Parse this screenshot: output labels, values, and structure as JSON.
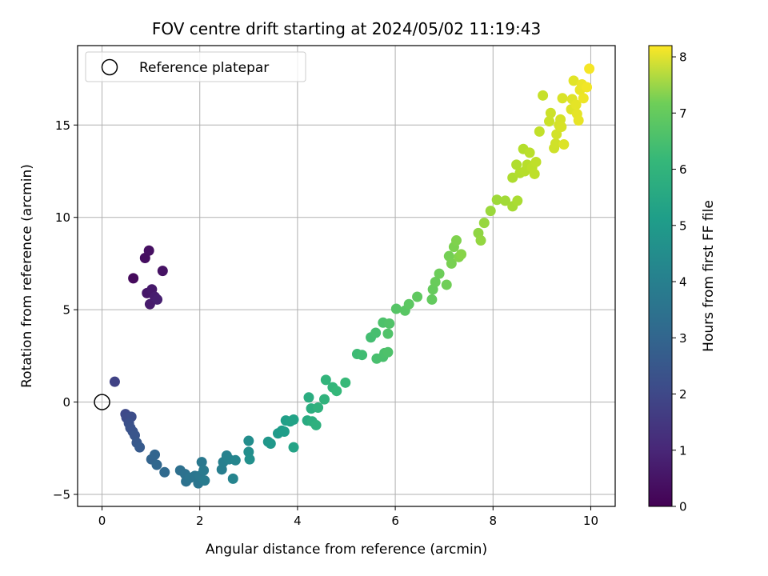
{
  "chart_data": {
    "type": "scatter",
    "title": "FOV centre drift starting at 2024/05/02 11:19:43",
    "xlabel": "Angular distance from reference (arcmin)",
    "ylabel": "Rotation from reference (arcmin)",
    "xlim": [
      -0.5,
      10.5
    ],
    "ylim": [
      -5.65,
      19.3
    ],
    "x_ticks": [
      0,
      2,
      4,
      6,
      8,
      10
    ],
    "y_ticks": [
      -5,
      0,
      5,
      10,
      15
    ],
    "grid": true,
    "legend": {
      "placement": "top-left",
      "entries": [
        "Reference platepar"
      ]
    },
    "reference_point": {
      "x": 0.0,
      "y": 0.0,
      "label": "Reference platepar"
    },
    "colorbar": {
      "label": "Hours from first FF file",
      "colormap": "viridis",
      "range": [
        0,
        8.2
      ],
      "ticks": [
        0,
        1,
        2,
        3,
        4,
        5,
        6,
        7,
        8
      ]
    },
    "points": [
      {
        "x": 0.64,
        "y": 6.7,
        "c": 0.2
      },
      {
        "x": 0.88,
        "y": 7.8,
        "c": 0.3
      },
      {
        "x": 0.96,
        "y": 8.2,
        "c": 0.35
      },
      {
        "x": 1.24,
        "y": 7.1,
        "c": 0.4
      },
      {
        "x": 0.92,
        "y": 5.9,
        "c": 0.5
      },
      {
        "x": 1.02,
        "y": 6.1,
        "c": 0.55
      },
      {
        "x": 0.98,
        "y": 5.3,
        "c": 0.6
      },
      {
        "x": 1.08,
        "y": 5.7,
        "c": 0.65
      },
      {
        "x": 1.13,
        "y": 5.55,
        "c": 0.7
      },
      {
        "x": 0.26,
        "y": 1.1,
        "c": 1.6
      },
      {
        "x": 0.48,
        "y": -0.65,
        "c": 1.8
      },
      {
        "x": 0.5,
        "y": -0.85,
        "c": 1.85
      },
      {
        "x": 0.6,
        "y": -0.8,
        "c": 1.9
      },
      {
        "x": 0.55,
        "y": -1.15,
        "c": 2.0
      },
      {
        "x": 0.58,
        "y": -1.4,
        "c": 2.05
      },
      {
        "x": 0.63,
        "y": -1.6,
        "c": 2.1
      },
      {
        "x": 0.67,
        "y": -1.8,
        "c": 2.15
      },
      {
        "x": 0.71,
        "y": -2.2,
        "c": 2.25
      },
      {
        "x": 0.77,
        "y": -2.45,
        "c": 2.3
      },
      {
        "x": 1.01,
        "y": -3.1,
        "c": 2.6
      },
      {
        "x": 1.08,
        "y": -2.85,
        "c": 2.65
      },
      {
        "x": 1.12,
        "y": -3.4,
        "c": 2.7
      },
      {
        "x": 1.28,
        "y": -3.8,
        "c": 2.8
      },
      {
        "x": 1.6,
        "y": -3.7,
        "c": 3.0
      },
      {
        "x": 1.7,
        "y": -3.9,
        "c": 3.05
      },
      {
        "x": 1.72,
        "y": -4.3,
        "c": 3.1
      },
      {
        "x": 1.8,
        "y": -4.1,
        "c": 3.15
      },
      {
        "x": 1.9,
        "y": -4.0,
        "c": 3.2
      },
      {
        "x": 1.97,
        "y": -4.4,
        "c": 3.2
      },
      {
        "x": 2.0,
        "y": -4.0,
        "c": 3.25
      },
      {
        "x": 2.04,
        "y": -3.25,
        "c": 3.3
      },
      {
        "x": 2.08,
        "y": -3.7,
        "c": 3.35
      },
      {
        "x": 2.1,
        "y": -4.25,
        "c": 3.4
      },
      {
        "x": 2.45,
        "y": -3.65,
        "c": 3.5
      },
      {
        "x": 2.48,
        "y": -3.25,
        "c": 3.55
      },
      {
        "x": 2.55,
        "y": -2.9,
        "c": 3.6
      },
      {
        "x": 2.6,
        "y": -3.1,
        "c": 3.65
      },
      {
        "x": 2.68,
        "y": -4.15,
        "c": 3.7
      },
      {
        "x": 2.73,
        "y": -3.15,
        "c": 3.75
      },
      {
        "x": 3.0,
        "y": -2.1,
        "c": 4.0
      },
      {
        "x": 3.0,
        "y": -2.7,
        "c": 4.05
      },
      {
        "x": 3.02,
        "y": -3.1,
        "c": 4.1
      },
      {
        "x": 3.4,
        "y": -2.15,
        "c": 4.3
      },
      {
        "x": 3.45,
        "y": -2.25,
        "c": 4.35
      },
      {
        "x": 3.6,
        "y": -1.7,
        "c": 4.45
      },
      {
        "x": 3.68,
        "y": -1.55,
        "c": 4.5
      },
      {
        "x": 3.73,
        "y": -1.6,
        "c": 4.55
      },
      {
        "x": 3.76,
        "y": -1.0,
        "c": 4.6
      },
      {
        "x": 3.85,
        "y": -1.05,
        "c": 4.65
      },
      {
        "x": 3.92,
        "y": -0.95,
        "c": 4.7
      },
      {
        "x": 3.92,
        "y": -2.45,
        "c": 4.75
      },
      {
        "x": 4.2,
        "y": -1.0,
        "c": 5.0
      },
      {
        "x": 4.23,
        "y": 0.25,
        "c": 5.05
      },
      {
        "x": 4.28,
        "y": -0.35,
        "c": 5.1
      },
      {
        "x": 4.3,
        "y": -1.05,
        "c": 5.15
      },
      {
        "x": 4.38,
        "y": -1.25,
        "c": 5.2
      },
      {
        "x": 4.42,
        "y": -0.3,
        "c": 5.25
      },
      {
        "x": 4.55,
        "y": 0.15,
        "c": 5.3
      },
      {
        "x": 4.58,
        "y": 1.2,
        "c": 5.35
      },
      {
        "x": 4.72,
        "y": 0.8,
        "c": 5.4
      },
      {
        "x": 4.8,
        "y": 0.6,
        "c": 5.45
      },
      {
        "x": 4.98,
        "y": 1.05,
        "c": 5.5
      },
      {
        "x": 5.22,
        "y": 2.6,
        "c": 5.6
      },
      {
        "x": 5.32,
        "y": 2.55,
        "c": 5.65
      },
      {
        "x": 5.5,
        "y": 3.5,
        "c": 5.7
      },
      {
        "x": 5.6,
        "y": 3.75,
        "c": 5.75
      },
      {
        "x": 5.62,
        "y": 2.35,
        "c": 5.78
      },
      {
        "x": 5.75,
        "y": 2.45,
        "c": 5.8
      },
      {
        "x": 5.78,
        "y": 2.65,
        "c": 5.82
      },
      {
        "x": 5.75,
        "y": 4.3,
        "c": 5.85
      },
      {
        "x": 5.85,
        "y": 2.7,
        "c": 5.87
      },
      {
        "x": 5.85,
        "y": 3.7,
        "c": 5.9
      },
      {
        "x": 5.88,
        "y": 4.25,
        "c": 5.92
      },
      {
        "x": 6.02,
        "y": 5.05,
        "c": 6.0
      },
      {
        "x": 6.2,
        "y": 4.95,
        "c": 6.05
      },
      {
        "x": 6.28,
        "y": 5.3,
        "c": 6.1
      },
      {
        "x": 6.45,
        "y": 5.7,
        "c": 6.15
      },
      {
        "x": 6.75,
        "y": 5.55,
        "c": 6.2
      },
      {
        "x": 6.77,
        "y": 6.1,
        "c": 6.25
      },
      {
        "x": 6.82,
        "y": 6.5,
        "c": 6.3
      },
      {
        "x": 6.9,
        "y": 6.95,
        "c": 6.35
      },
      {
        "x": 7.05,
        "y": 6.35,
        "c": 6.4
      },
      {
        "x": 7.1,
        "y": 7.9,
        "c": 6.45
      },
      {
        "x": 7.15,
        "y": 7.5,
        "c": 6.5
      },
      {
        "x": 7.2,
        "y": 8.4,
        "c": 6.55
      },
      {
        "x": 7.25,
        "y": 8.75,
        "c": 6.6
      },
      {
        "x": 7.3,
        "y": 7.85,
        "c": 6.65
      },
      {
        "x": 7.35,
        "y": 8.0,
        "c": 6.7
      },
      {
        "x": 7.7,
        "y": 9.15,
        "c": 6.8
      },
      {
        "x": 7.75,
        "y": 8.75,
        "c": 6.85
      },
      {
        "x": 7.82,
        "y": 9.7,
        "c": 6.9
      },
      {
        "x": 7.95,
        "y": 10.35,
        "c": 6.95
      },
      {
        "x": 8.08,
        "y": 10.95,
        "c": 7.0
      },
      {
        "x": 8.25,
        "y": 10.9,
        "c": 7.05
      },
      {
        "x": 8.4,
        "y": 10.6,
        "c": 7.1
      },
      {
        "x": 8.5,
        "y": 10.9,
        "c": 7.15
      },
      {
        "x": 8.4,
        "y": 12.15,
        "c": 7.2
      },
      {
        "x": 8.48,
        "y": 12.85,
        "c": 7.22
      },
      {
        "x": 8.55,
        "y": 12.4,
        "c": 7.25
      },
      {
        "x": 8.62,
        "y": 13.7,
        "c": 7.28
      },
      {
        "x": 8.65,
        "y": 12.5,
        "c": 7.3
      },
      {
        "x": 8.7,
        "y": 12.85,
        "c": 7.32
      },
      {
        "x": 8.75,
        "y": 13.5,
        "c": 7.35
      },
      {
        "x": 8.8,
        "y": 12.7,
        "c": 7.38
      },
      {
        "x": 8.85,
        "y": 12.35,
        "c": 7.4
      },
      {
        "x": 8.88,
        "y": 13.0,
        "c": 7.42
      },
      {
        "x": 8.95,
        "y": 14.65,
        "c": 7.45
      },
      {
        "x": 9.02,
        "y": 16.6,
        "c": 7.5
      },
      {
        "x": 9.15,
        "y": 15.2,
        "c": 7.55
      },
      {
        "x": 9.18,
        "y": 15.65,
        "c": 7.58
      },
      {
        "x": 9.25,
        "y": 13.75,
        "c": 7.6
      },
      {
        "x": 9.28,
        "y": 14.0,
        "c": 7.62
      },
      {
        "x": 9.3,
        "y": 14.5,
        "c": 7.65
      },
      {
        "x": 9.35,
        "y": 15.0,
        "c": 7.68
      },
      {
        "x": 9.38,
        "y": 15.3,
        "c": 7.7
      },
      {
        "x": 9.4,
        "y": 14.9,
        "c": 7.72
      },
      {
        "x": 9.42,
        "y": 16.45,
        "c": 7.75
      },
      {
        "x": 9.45,
        "y": 13.95,
        "c": 7.78
      },
      {
        "x": 9.6,
        "y": 15.85,
        "c": 7.8
      },
      {
        "x": 9.62,
        "y": 16.4,
        "c": 7.82
      },
      {
        "x": 9.65,
        "y": 17.4,
        "c": 7.85
      },
      {
        "x": 9.7,
        "y": 16.1,
        "c": 7.88
      },
      {
        "x": 9.72,
        "y": 15.6,
        "c": 7.9
      },
      {
        "x": 9.75,
        "y": 15.25,
        "c": 7.92
      },
      {
        "x": 9.78,
        "y": 16.9,
        "c": 7.95
      },
      {
        "x": 9.82,
        "y": 17.2,
        "c": 7.97
      },
      {
        "x": 9.85,
        "y": 16.45,
        "c": 8.0
      },
      {
        "x": 9.92,
        "y": 17.05,
        "c": 8.05
      },
      {
        "x": 9.97,
        "y": 18.05,
        "c": 8.1
      }
    ]
  }
}
